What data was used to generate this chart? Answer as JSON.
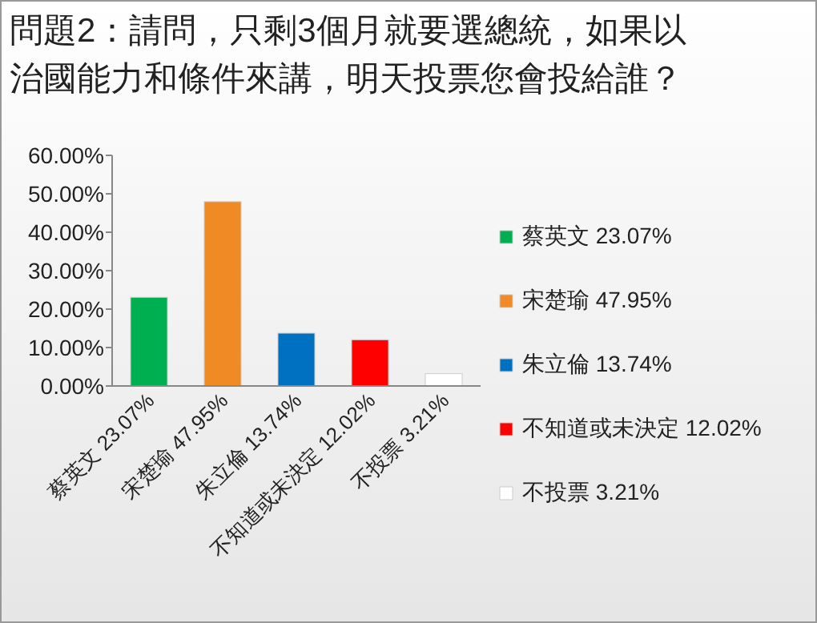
{
  "chart_data": {
    "type": "bar",
    "title": "問題2：請問，只剩3個月就要選總統，如果以治國能力和條件來講，明天投票您會投給誰？",
    "categories": [
      "蔡英文 23.07%",
      "宋楚瑜 47.95%",
      "朱立倫 13.74%",
      "不知道或未決定 12.02%",
      "不投票 3.21%"
    ],
    "series": [
      {
        "name": "蔡英文 23.07%",
        "color": "#00b050",
        "values": [
          23.07,
          null,
          null,
          null,
          null
        ]
      },
      {
        "name": "宋楚瑜 47.95%",
        "color": "#f08a24",
        "values": [
          null,
          47.95,
          null,
          null,
          null
        ]
      },
      {
        "name": "朱立倫 13.74%",
        "color": "#0070c0",
        "values": [
          null,
          null,
          13.74,
          null,
          null
        ]
      },
      {
        "name": "不知道或未決定 12.02%",
        "color": "#ff0000",
        "values": [
          null,
          null,
          null,
          12.02,
          null
        ]
      },
      {
        "name": "不投票 3.21%",
        "color": "#ffffff",
        "values": [
          null,
          null,
          null,
          null,
          3.21
        ]
      }
    ],
    "ylim": [
      0,
      60
    ],
    "yticks": [
      {
        "value": 0,
        "label": "0.00%"
      },
      {
        "value": 10,
        "label": "10.00%"
      },
      {
        "value": 20,
        "label": "20.00%"
      },
      {
        "value": 30,
        "label": "30.00%"
      },
      {
        "value": 40,
        "label": "40.00%"
      },
      {
        "value": 50,
        "label": "50.00%"
      },
      {
        "value": 60,
        "label": "60.00%"
      }
    ],
    "legend": "right"
  }
}
